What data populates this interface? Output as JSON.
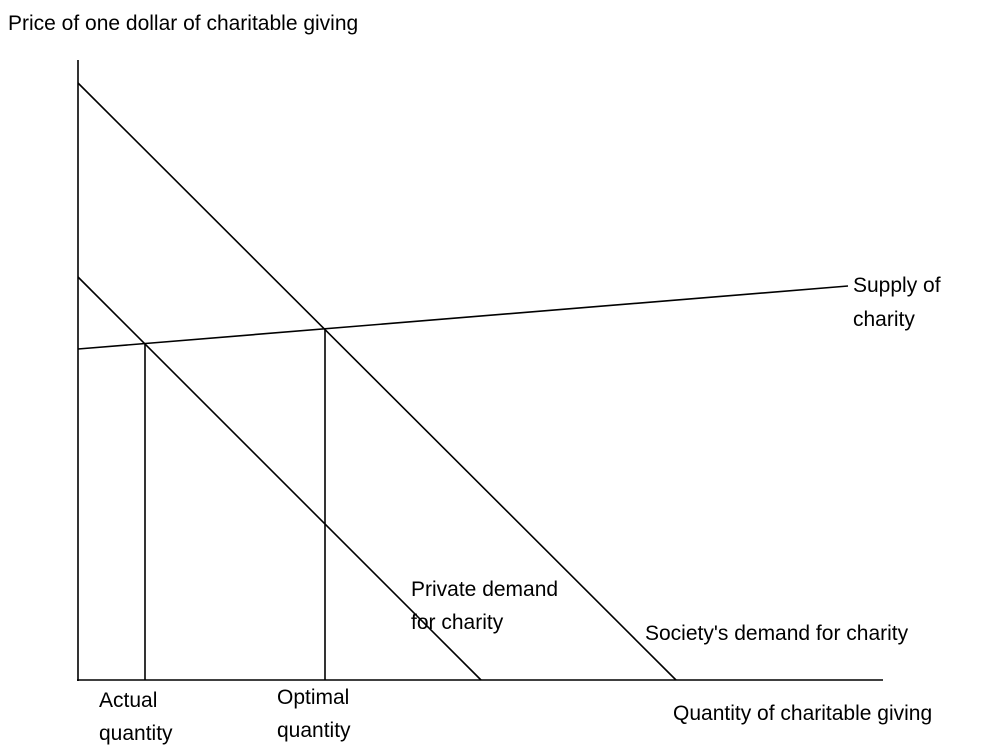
{
  "axes": {
    "y_label": "Price of one dollar of charitable giving",
    "x_label": "Quantity of charitable giving"
  },
  "curves": {
    "supply": [
      "Supply of",
      "charity"
    ],
    "private_demand": [
      "Private demand",
      "for charity"
    ],
    "society_demand": "Society's demand for charity"
  },
  "quantities": {
    "actual": [
      "Actual",
      "quantity"
    ],
    "optimal": [
      "Optimal",
      "quantity"
    ]
  }
}
